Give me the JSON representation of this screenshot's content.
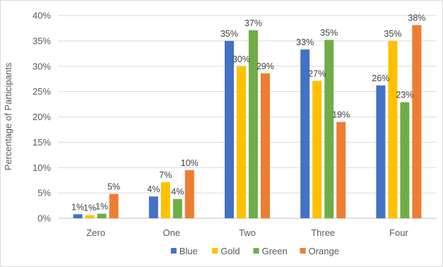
{
  "chart_data": {
    "type": "bar",
    "title": "",
    "xlabel": "",
    "ylabel": "Percentage of Participants",
    "ylim": [
      0,
      40
    ],
    "yticks": [
      0,
      5,
      10,
      15,
      20,
      25,
      30,
      35,
      40
    ],
    "ytick_labels": [
      "0%",
      "5%",
      "10%",
      "15%",
      "20%",
      "25%",
      "30%",
      "35%",
      "40%"
    ],
    "grid": true,
    "legend_position": "bottom",
    "categories": [
      "Zero",
      "One",
      "Two",
      "Three",
      "Four"
    ],
    "series": [
      {
        "name": "Blue",
        "color": "#4472C4",
        "values": [
          0.8,
          4.3,
          35.0,
          33.3,
          26.2
        ],
        "labels": [
          "1%",
          "4%",
          "35%",
          "33%",
          "26%"
        ]
      },
      {
        "name": "Gold",
        "color": "#FFC000",
        "values": [
          0.6,
          7.1,
          30.0,
          27.1,
          35.0
        ],
        "labels": [
          "1%",
          "7%",
          "30%",
          "27%",
          "35%"
        ]
      },
      {
        "name": "Green",
        "color": "#70AD47",
        "values": [
          0.9,
          3.8,
          37.1,
          35.2,
          22.9
        ],
        "labels": [
          "1%",
          "4%",
          "37%",
          "35%",
          "23%"
        ]
      },
      {
        "name": "Orange",
        "color": "#ED7D31",
        "values": [
          4.8,
          9.5,
          28.6,
          19.0,
          38.1
        ],
        "labels": [
          "5%",
          "10%",
          "29%",
          "19%",
          "38%"
        ]
      }
    ]
  }
}
